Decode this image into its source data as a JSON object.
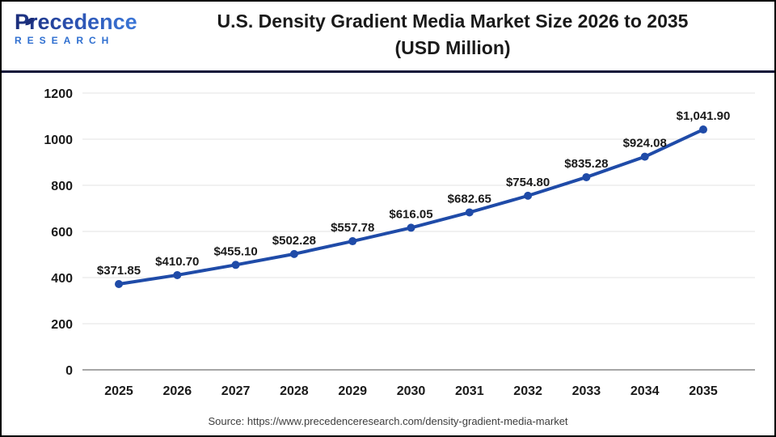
{
  "header": {
    "logo_line1": "Precedence",
    "logo_line2": "RESEARCH",
    "title_line1": "U.S. Density Gradient Media Market Size 2026 to 2035",
    "title_line2": "(USD Million)"
  },
  "chart_data": {
    "type": "line",
    "title": "U.S. Density Gradient Media Market Size 2026 to 2035 (USD Million)",
    "categories": [
      "2025",
      "2026",
      "2027",
      "2028",
      "2029",
      "2030",
      "2031",
      "2032",
      "2033",
      "2034",
      "2035"
    ],
    "values": [
      371.85,
      410.7,
      455.1,
      502.28,
      557.78,
      616.05,
      682.65,
      754.8,
      835.28,
      924.08,
      1041.9
    ],
    "point_labels": [
      "$371.85",
      "$410.70",
      "$455.10",
      "$502.28",
      "$557.78",
      "$616.05",
      "$682.65",
      "$754.80",
      "$835.28",
      "$924.08",
      "$1,041.90"
    ],
    "y_ticks": [
      0,
      200,
      400,
      600,
      800,
      1000,
      1200
    ],
    "ylim": [
      0,
      1200
    ],
    "xlabel": "",
    "ylabel": "",
    "grid": true,
    "legend": "none",
    "line_color": "#1F4BA8",
    "marker_color": "#1F4BA8",
    "gridline_color": "#e3e3e3",
    "baseline_color": "#a6a6a6",
    "label_color": "#1a1a1a"
  },
  "footer": {
    "source": "Source: https://www.precedenceresearch.com/density-gradient-media-market"
  }
}
